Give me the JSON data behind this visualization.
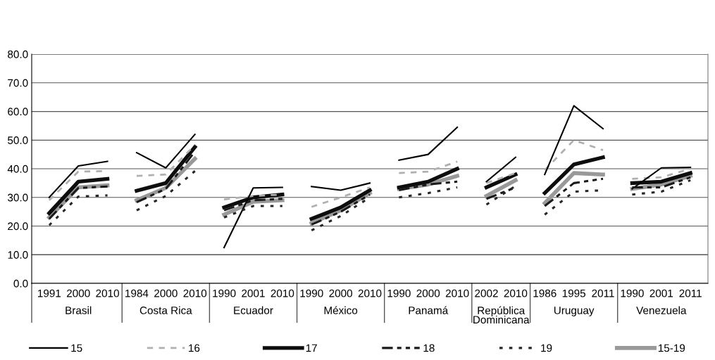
{
  "chart_data": {
    "type": "line",
    "categories": [
      "1991",
      "2000",
      "2010",
      "1984",
      "2000",
      "2010",
      "1990",
      "2001",
      "2010",
      "1990",
      "2000",
      "2010",
      "1990",
      "2000",
      "2010",
      "2002",
      "2010",
      "1986",
      "1995",
      "2011",
      "1990",
      "2001",
      "2011"
    ],
    "annotations": [
      "Brasil",
      "Costa Rica",
      "Ecuador",
      "México",
      "Panamá",
      "República\nDominicana",
      "Uruguay",
      "Venezuela"
    ],
    "series": [
      {
        "name": "15",
        "color": "#000000",
        "line_style": "solid",
        "values": [
          30,
          41,
          42.6,
          45.6,
          40.3,
          52,
          12.5,
          33.3,
          33.5,
          33.8,
          32.5,
          35,
          43,
          45,
          54.5,
          35.5,
          44,
          38,
          62,
          54,
          33,
          40.3,
          40.5
        ]
      },
      {
        "name": "16",
        "color": "#b0b0b0",
        "line_style": "dashed",
        "values": [
          29,
          39,
          39.2,
          37.5,
          38,
          48.3,
          29.3,
          30.5,
          31,
          26.7,
          30,
          33.5,
          38.5,
          39,
          42.5,
          35,
          38.5,
          39.5,
          50,
          46.5,
          36.5,
          37,
          40
        ]
      },
      {
        "name": "17",
        "color": "#0d0d0d",
        "line_style": "solid",
        "values": [
          24.5,
          35.5,
          36.5,
          32.3,
          35,
          47.6,
          26.5,
          30,
          31,
          22.5,
          26.5,
          32.5,
          33.5,
          35.5,
          40,
          33.5,
          38,
          31.5,
          41.5,
          44,
          35,
          35.5,
          38.5
        ]
      },
      {
        "name": "18",
        "color": "#1a1a1a",
        "line_style": "dashed",
        "values": [
          22.5,
          33.3,
          33.8,
          28.3,
          33,
          46,
          25.5,
          29,
          29.5,
          20.5,
          25,
          31,
          32.5,
          34.5,
          35.5,
          29.5,
          33.5,
          27,
          35,
          36.5,
          33.5,
          33.5,
          37
        ]
      },
      {
        "name": "19",
        "color": "#262626",
        "line_style": "dotted",
        "values": [
          20.3,
          30.3,
          30.7,
          25.5,
          30.5,
          39.2,
          23,
          27,
          27,
          18.5,
          23.5,
          30,
          30,
          31.5,
          33.5,
          27.5,
          34,
          24,
          32,
          32.5,
          31,
          32,
          36
        ]
      },
      {
        "name": "15-19",
        "color": "#999999",
        "line_style": "solid",
        "values": [
          23,
          33.5,
          34.2,
          29,
          33.3,
          43.5,
          24,
          28.5,
          29,
          21,
          25.5,
          31.5,
          33,
          34.5,
          37.5,
          30.5,
          36,
          28,
          38.5,
          38,
          33,
          34.5,
          37.5
        ]
      }
    ],
    "ylim": [
      0,
      80
    ],
    "yticks": [
      {
        "value": 0,
        "label": "0.0"
      },
      {
        "value": 10,
        "label": "10.0"
      },
      {
        "value": 20,
        "label": "20.0"
      },
      {
        "value": 30,
        "label": "30.0"
      },
      {
        "value": 40,
        "label": "40.0"
      },
      {
        "value": 50,
        "label": "50.0"
      },
      {
        "value": 60,
        "label": "60.0"
      },
      {
        "value": 70,
        "label": "70.0"
      },
      {
        "value": 80,
        "label": "80.0"
      }
    ],
    "grid": "y",
    "legend": "bottom",
    "marker": "none"
  }
}
